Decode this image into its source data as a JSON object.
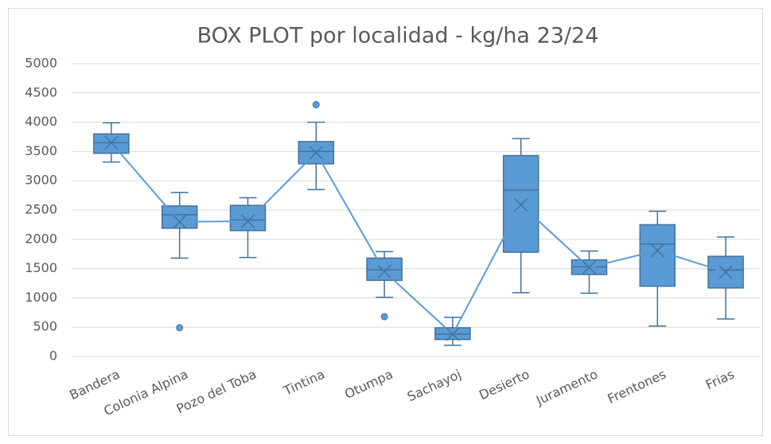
{
  "chart_data": {
    "type": "box",
    "title": "BOX PLOT por localidad - kg/ha 23/24",
    "categories": [
      "Bandera",
      "Colonia Alpina",
      "Pozo del Toba",
      "Tintina",
      "Otumpa",
      "Sachayoj",
      "Desierto",
      "Juramento",
      "Frentones",
      "Frias"
    ],
    "color": "#5b9bd5",
    "edge_color": "#41719c",
    "boxes": [
      {
        "min": 3320,
        "q1": 3470,
        "median": 3650,
        "q3": 3800,
        "max": 3990,
        "mean": 3650,
        "outliers": []
      },
      {
        "min": 1680,
        "q1": 2190,
        "median": 2420,
        "q3": 2570,
        "max": 2800,
        "mean": 2300,
        "outliers": [
          490
        ]
      },
      {
        "min": 1690,
        "q1": 2150,
        "median": 2330,
        "q3": 2580,
        "max": 2710,
        "mean": 2310,
        "outliers": []
      },
      {
        "min": 2850,
        "q1": 3290,
        "median": 3500,
        "q3": 3670,
        "max": 4000,
        "mean": 3480,
        "outliers": [
          4300
        ]
      },
      {
        "min": 1010,
        "q1": 1300,
        "median": 1480,
        "q3": 1680,
        "max": 1790,
        "mean": 1450,
        "outliers": [
          680
        ]
      },
      {
        "min": 190,
        "q1": 290,
        "median": 380,
        "q3": 490,
        "max": 670,
        "mean": 380,
        "outliers": []
      },
      {
        "min": 1090,
        "q1": 1780,
        "median": 2840,
        "q3": 3430,
        "max": 3720,
        "mean": 2590,
        "outliers": []
      },
      {
        "min": 1080,
        "q1": 1400,
        "median": 1530,
        "q3": 1650,
        "max": 1800,
        "mean": 1520,
        "outliers": []
      },
      {
        "min": 520,
        "q1": 1200,
        "median": 1920,
        "q3": 2250,
        "max": 2480,
        "mean": 1810,
        "outliers": []
      },
      {
        "min": 640,
        "q1": 1170,
        "median": 1480,
        "q3": 1710,
        "max": 2040,
        "mean": 1440,
        "outliers": []
      }
    ],
    "ylim": [
      0,
      5000
    ],
    "yticks": [
      0,
      500,
      1000,
      1500,
      2000,
      2500,
      3000,
      3500,
      4000,
      4500,
      5000
    ],
    "grid": true
  }
}
